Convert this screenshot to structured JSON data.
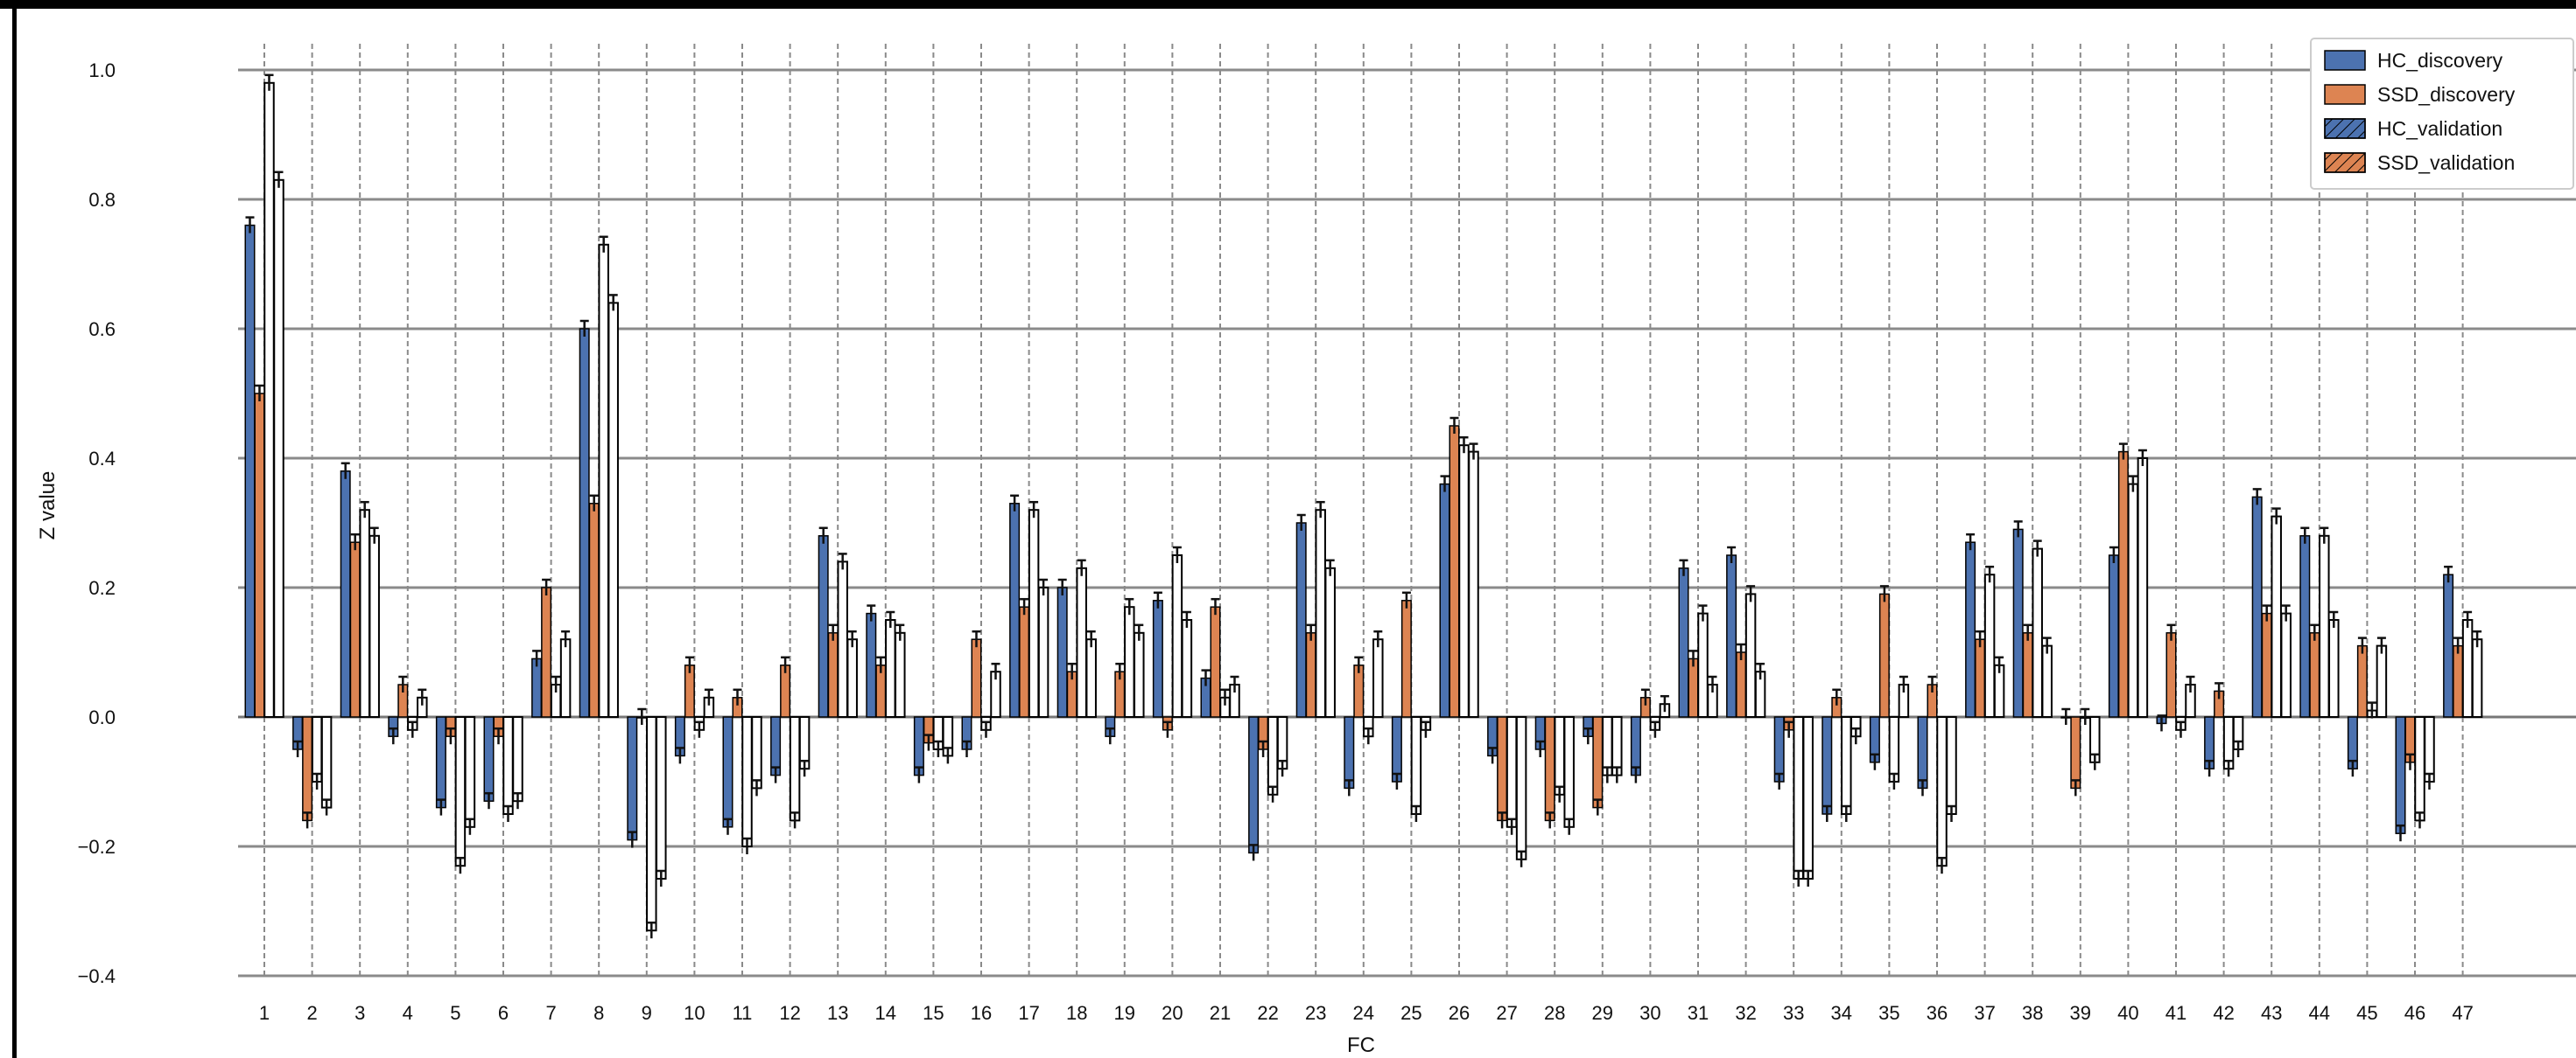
{
  "chart_data": {
    "type": "bar",
    "xlabel": "FC",
    "ylabel": "Z value",
    "ylim": [
      -0.4,
      1.0
    ],
    "yticks": [
      -0.4,
      -0.2,
      0.0,
      0.2,
      0.4,
      0.6,
      0.8,
      1.0
    ],
    "ytick_labels": [
      "−0.4",
      "−0.2",
      "0.0",
      "0.2",
      "0.4",
      "0.6",
      "0.8",
      "1.0"
    ],
    "grid": true,
    "legend_position": "top-right",
    "categories": [
      "1",
      "2",
      "3",
      "4",
      "5",
      "6",
      "7",
      "8",
      "9",
      "10",
      "11",
      "12",
      "13",
      "14",
      "15",
      "16",
      "17",
      "18",
      "19",
      "20",
      "21",
      "22",
      "23",
      "24",
      "25",
      "26",
      "27",
      "28",
      "29",
      "30",
      "31",
      "32",
      "33",
      "34",
      "35",
      "36",
      "37",
      "38",
      "39",
      "40",
      "41",
      "42",
      "43",
      "44",
      "45",
      "46",
      "47"
    ],
    "series": [
      {
        "name": "HC_discovery",
        "color": "#4c72b0",
        "hatch": false,
        "values": [
          0.76,
          -0.05,
          0.38,
          -0.03,
          -0.14,
          -0.13,
          0.09,
          0.6,
          -0.19,
          -0.06,
          -0.17,
          -0.09,
          0.28,
          0.16,
          -0.09,
          -0.05,
          0.33,
          0.2,
          -0.03,
          0.18,
          0.06,
          -0.21,
          0.3,
          -0.11,
          -0.1,
          0.36,
          -0.06,
          -0.05,
          -0.03,
          -0.09,
          0.23,
          0.25,
          -0.1,
          -0.15,
          -0.07,
          -0.11,
          0.27,
          0.29,
          0.0,
          0.25,
          -0.01,
          -0.08,
          0.34,
          0.28,
          -0.08,
          -0.18,
          0.22
        ]
      },
      {
        "name": "SSD_discovery",
        "color": "#dd8452",
        "hatch": false,
        "values": [
          0.5,
          -0.16,
          0.27,
          0.05,
          -0.03,
          -0.03,
          0.2,
          0.33,
          0.0,
          0.08,
          0.03,
          0.08,
          0.13,
          0.08,
          -0.04,
          0.12,
          0.17,
          0.07,
          0.07,
          -0.02,
          0.17,
          -0.05,
          0.13,
          0.08,
          0.18,
          0.45,
          -0.16,
          -0.16,
          -0.14,
          0.03,
          0.09,
          0.1,
          -0.02,
          0.03,
          0.19,
          0.05,
          0.12,
          0.13,
          -0.11,
          0.41,
          0.13,
          0.04,
          0.16,
          0.13,
          0.11,
          -0.07,
          0.11
        ]
      },
      {
        "name": "HC_validation",
        "color": "#4c72b0",
        "hatch": true,
        "values": [
          0.98,
          -0.1,
          0.32,
          -0.02,
          -0.23,
          -0.15,
          0.05,
          0.73,
          -0.33,
          -0.02,
          -0.2,
          -0.16,
          0.24,
          0.15,
          -0.05,
          -0.02,
          0.32,
          0.23,
          0.17,
          0.25,
          0.03,
          -0.12,
          0.32,
          -0.03,
          -0.15,
          0.42,
          -0.17,
          -0.12,
          -0.09,
          -0.02,
          0.16,
          0.19,
          -0.25,
          -0.15,
          -0.1,
          -0.23,
          0.22,
          0.26,
          0.0,
          0.36,
          -0.02,
          -0.08,
          0.31,
          0.28,
          0.01,
          -0.16,
          0.15
        ]
      },
      {
        "name": "SSD_validation",
        "color": "#dd8452",
        "hatch": true,
        "values": [
          0.83,
          -0.14,
          0.28,
          0.03,
          -0.17,
          -0.13,
          0.12,
          0.64,
          -0.25,
          0.03,
          -0.11,
          -0.08,
          0.12,
          0.13,
          -0.06,
          0.07,
          0.2,
          0.12,
          0.13,
          0.15,
          0.05,
          -0.08,
          0.23,
          0.12,
          -0.02,
          0.41,
          -0.22,
          -0.17,
          -0.09,
          0.02,
          0.05,
          0.07,
          -0.25,
          -0.03,
          0.05,
          -0.15,
          0.08,
          0.11,
          -0.07,
          0.4,
          0.05,
          -0.05,
          0.16,
          0.15,
          0.11,
          -0.1,
          0.12
        ]
      }
    ]
  }
}
